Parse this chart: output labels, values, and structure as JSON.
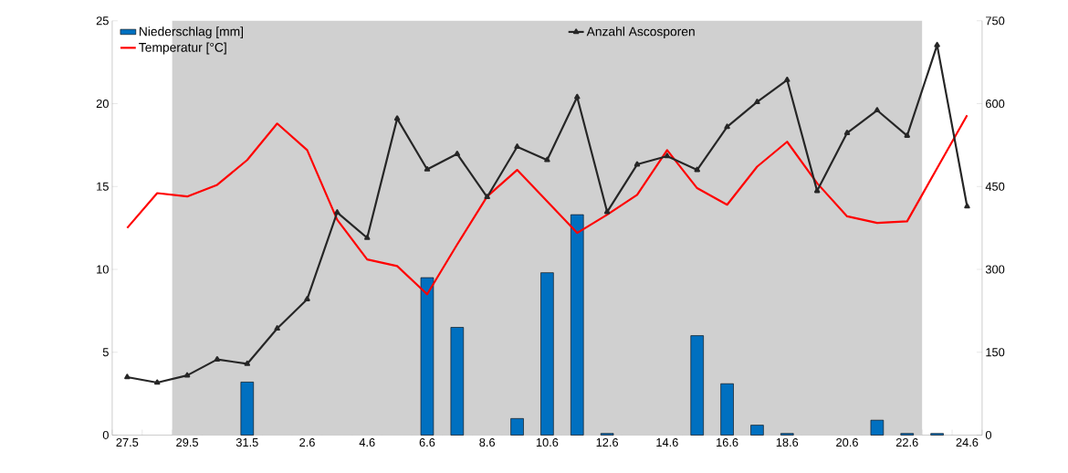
{
  "chart_data": {
    "type": "bar",
    "categories": [
      "27.5",
      null,
      "29.5",
      null,
      "31.5",
      null,
      "2.6",
      null,
      "4.6",
      null,
      "6.6",
      null,
      "8.6",
      null,
      "10.6",
      null,
      "12.6",
      null,
      "14.6",
      null,
      "16.6",
      null,
      "18.6",
      null,
      "20.6",
      null,
      "22.6",
      null,
      "24.6"
    ],
    "series": [
      {
        "name": "Niederschlag [mm]",
        "color": "#0070c0",
        "values": [
          0,
          0,
          0,
          0,
          3.2,
          0,
          0,
          0,
          0,
          0,
          9.5,
          6.5,
          0,
          1.0,
          9.8,
          13.3,
          0.1,
          0,
          0,
          6.0,
          3.1,
          0.6,
          0.1,
          0,
          0,
          0.9,
          0.1,
          0.1,
          0
        ]
      },
      {
        "name": "Temperatur [°C]",
        "type": "line",
        "color": "#ff0000",
        "values": [
          12.5,
          14.6,
          14.4,
          15.1,
          16.6,
          18.8,
          17.2,
          13.0,
          10.6,
          10.2,
          8.5,
          11.5,
          14.4,
          16.0,
          14.1,
          12.2,
          13.3,
          14.5,
          17.2,
          14.9,
          13.9,
          16.2,
          17.7,
          15.2,
          13.2,
          12.8,
          12.9,
          16.1,
          19.3
        ]
      },
      {
        "name": "Anzahl Ascosporen",
        "type": "line",
        "axis": "y2",
        "color": "#262626",
        "marker": "triangle",
        "values": [
          105,
          95,
          108,
          137,
          129,
          193,
          246,
          403,
          357,
          573,
          481,
          509,
          431,
          522,
          498,
          612,
          404,
          490,
          505,
          480,
          558,
          603,
          643,
          442,
          547,
          588,
          542,
          706,
          414
        ]
      }
    ],
    "ylim": [
      0,
      25
    ],
    "yticks": [
      0,
      5,
      10,
      15,
      20,
      25
    ],
    "y2lim": [
      0,
      750
    ],
    "y2ticks": [
      0,
      150,
      300,
      450,
      600,
      750
    ],
    "bands": [
      {
        "axis": "x",
        "from": "29.5",
        "to": "22.6",
        "color": "#d0d0d0"
      }
    ],
    "legend": "left",
    "grid": false
  }
}
